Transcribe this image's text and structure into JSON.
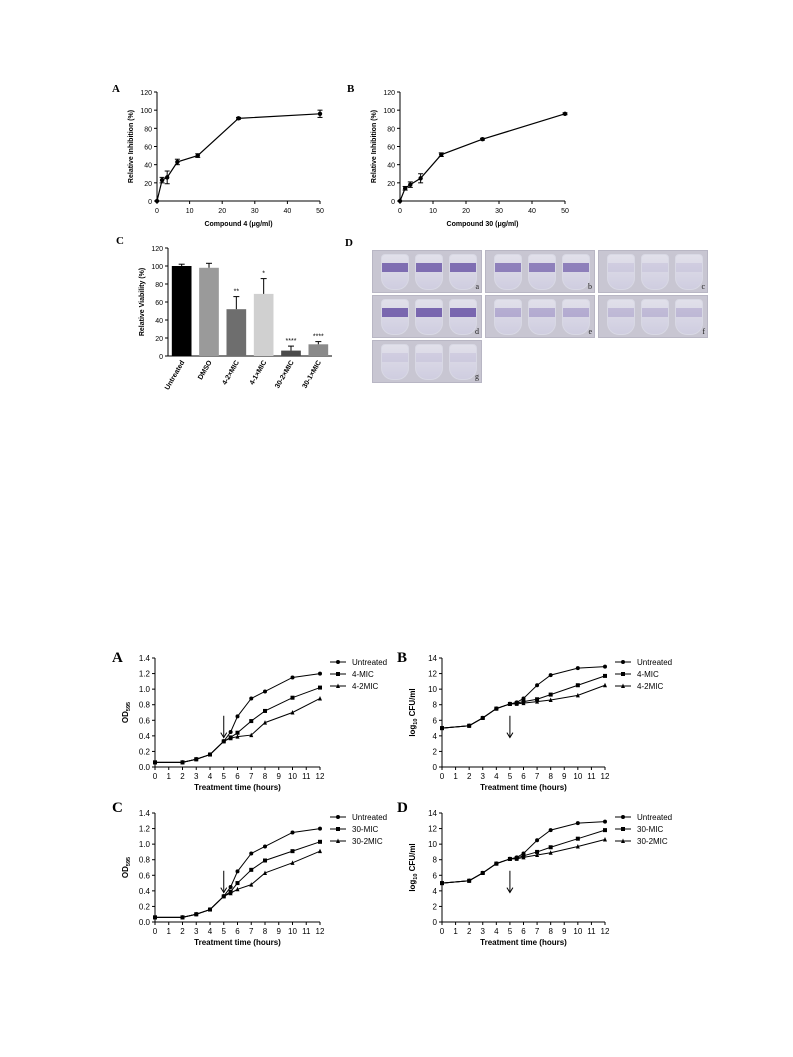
{
  "figure1": {
    "panels": [
      {
        "letter": "A",
        "ylabel": "Relative Inhibition (%)",
        "xlabel": "Compound 4 (μg/ml)"
      },
      {
        "letter": "B",
        "ylabel": "Relative Inhibition (%)",
        "xlabel": "Compound 30 (μg/ml)"
      },
      {
        "letter": "C",
        "ylabel": "Relative Viability (%)"
      },
      {
        "letter": "D",
        "tiles": [
          "a",
          "b",
          "c",
          "d",
          "e",
          "f",
          "g"
        ]
      }
    ]
  },
  "figure2": {
    "panels": [
      {
        "letter": "A",
        "ylabel_main": "OD",
        "ylabel_sub": "595",
        "xlabel": "Treatment time (hours)",
        "legend": [
          "Untreated",
          "4-MIC",
          "4-2MIC"
        ]
      },
      {
        "letter": "B",
        "ylabel_main": "log",
        "ylabel_sub": "10",
        "ylabel_rest": " CFU/ml",
        "xlabel": "Treatment time (hours)",
        "legend": [
          "Untreated",
          "4-MIC",
          "4-2MIC"
        ]
      },
      {
        "letter": "C",
        "ylabel_main": "OD",
        "ylabel_sub": "595",
        "xlabel": "Treatment time (hours)",
        "legend": [
          "Untreated",
          "30-MIC",
          "30-2MIC"
        ]
      },
      {
        "letter": "D",
        "ylabel_main": "log",
        "ylabel_sub": "10",
        "ylabel_rest": " CFU/ml",
        "xlabel": "Treatment time (hours)",
        "legend": [
          "Untreated",
          "30-MIC",
          "30-2MIC"
        ]
      }
    ]
  },
  "chart_data": [
    {
      "id": "1A",
      "type": "line",
      "x": [
        0,
        1.5625,
        3.125,
        6.25,
        12.5,
        25,
        50
      ],
      "y": [
        0,
        23,
        26,
        43,
        50,
        91,
        96
      ],
      "err": [
        0,
        3,
        7,
        3,
        2,
        1,
        4
      ],
      "xlim": [
        0,
        50
      ],
      "ylim": [
        0,
        120
      ],
      "xticks": [
        0,
        10,
        20,
        30,
        40,
        50
      ],
      "yticks": [
        0,
        20,
        40,
        60,
        80,
        100,
        120
      ]
    },
    {
      "id": "1B",
      "type": "line",
      "x": [
        0,
        1.5625,
        3.125,
        6.25,
        12.5,
        25,
        50
      ],
      "y": [
        0,
        14,
        18,
        25,
        51,
        68,
        96
      ],
      "err": [
        0,
        2,
        3,
        5,
        2,
        1,
        1
      ],
      "xlim": [
        0,
        50
      ],
      "ylim": [
        0,
        120
      ],
      "xticks": [
        0,
        10,
        20,
        30,
        40,
        50
      ],
      "yticks": [
        0,
        20,
        40,
        60,
        80,
        100,
        120
      ]
    },
    {
      "id": "1C",
      "type": "bar",
      "categories": [
        "Untreated",
        "DMSO",
        "4-2×MIC",
        "4-1×MIC",
        "30-2×MIC",
        "30-1×MIC"
      ],
      "values": [
        100,
        98,
        52,
        69,
        6,
        13
      ],
      "err": [
        2,
        5,
        14,
        17,
        5,
        3
      ],
      "significance": [
        "",
        "",
        "**",
        "*",
        "****",
        "****"
      ],
      "colors": [
        "#000000",
        "#9a9a9a",
        "#6e6e6e",
        "#d0d0d0",
        "#4a4a4a",
        "#8a8a8a"
      ],
      "ylim": [
        0,
        120
      ],
      "yticks": [
        0,
        20,
        40,
        60,
        80,
        100,
        120
      ]
    },
    {
      "id": "2A",
      "type": "line",
      "x": [
        0,
        2,
        3,
        4,
        5,
        5.5,
        6,
        7,
        8,
        10,
        12
      ],
      "series": [
        {
          "name": "Untreated",
          "marker": "circle",
          "values": [
            0.06,
            0.06,
            0.1,
            0.16,
            0.33,
            0.45,
            0.65,
            0.88,
            0.97,
            1.15,
            1.2
          ]
        },
        {
          "name": "4-MIC",
          "marker": "square",
          "values": [
            0.06,
            0.06,
            0.1,
            0.16,
            0.33,
            0.38,
            0.44,
            0.59,
            0.72,
            0.89,
            1.02
          ]
        },
        {
          "name": "4-2MIC",
          "marker": "triangle",
          "values": [
            0.06,
            0.06,
            0.1,
            0.16,
            0.33,
            0.37,
            0.39,
            0.41,
            0.57,
            0.7,
            0.88
          ]
        }
      ],
      "xlim": [
        0,
        12
      ],
      "ylim": [
        0,
        1.4
      ],
      "xticks": [
        0,
        1,
        2,
        3,
        4,
        5,
        6,
        7,
        8,
        9,
        10,
        11,
        12
      ],
      "yticks": [
        0.0,
        0.2,
        0.4,
        0.6,
        0.8,
        1.0,
        1.2,
        1.4
      ],
      "arrow_x": 5
    },
    {
      "id": "2B",
      "type": "line",
      "x": [
        0,
        2,
        3,
        4,
        5,
        5.5,
        6,
        7,
        8,
        10,
        12
      ],
      "series": [
        {
          "name": "Untreated",
          "marker": "circle",
          "values": [
            5,
            5.3,
            6.3,
            7.5,
            8.1,
            8.3,
            8.8,
            10.5,
            11.8,
            12.7,
            12.9
          ]
        },
        {
          "name": "4-MIC",
          "marker": "square",
          "values": [
            5,
            5.3,
            6.3,
            7.5,
            8.1,
            8.2,
            8.4,
            8.7,
            9.3,
            10.5,
            11.7
          ]
        },
        {
          "name": "4-2MIC",
          "marker": "triangle",
          "values": [
            5,
            5.3,
            6.3,
            7.5,
            8.1,
            8.1,
            8.2,
            8.4,
            8.6,
            9.2,
            10.5
          ]
        }
      ],
      "xlim": [
        0,
        12
      ],
      "ylim": [
        0,
        14
      ],
      "xticks": [
        0,
        1,
        2,
        3,
        4,
        5,
        6,
        7,
        8,
        9,
        10,
        11,
        12
      ],
      "yticks": [
        0,
        2,
        4,
        6,
        8,
        10,
        12,
        14
      ],
      "arrow_x": 5
    },
    {
      "id": "2C",
      "type": "line",
      "x": [
        0,
        2,
        3,
        4,
        5,
        5.5,
        6,
        7,
        8,
        10,
        12
      ],
      "series": [
        {
          "name": "Untreated",
          "marker": "circle",
          "values": [
            0.06,
            0.06,
            0.1,
            0.16,
            0.33,
            0.45,
            0.65,
            0.88,
            0.97,
            1.15,
            1.2
          ]
        },
        {
          "name": "30-MIC",
          "marker": "square",
          "values": [
            0.06,
            0.06,
            0.1,
            0.16,
            0.33,
            0.39,
            0.5,
            0.67,
            0.79,
            0.91,
            1.03
          ]
        },
        {
          "name": "30-2MIC",
          "marker": "triangle",
          "values": [
            0.06,
            0.06,
            0.1,
            0.16,
            0.33,
            0.37,
            0.42,
            0.48,
            0.63,
            0.76,
            0.91
          ]
        }
      ],
      "xlim": [
        0,
        12
      ],
      "ylim": [
        0,
        1.4
      ],
      "xticks": [
        0,
        1,
        2,
        3,
        4,
        5,
        6,
        7,
        8,
        9,
        10,
        11,
        12
      ],
      "yticks": [
        0.0,
        0.2,
        0.4,
        0.6,
        0.8,
        1.0,
        1.2,
        1.4
      ],
      "arrow_x": 5
    },
    {
      "id": "2D",
      "type": "line",
      "x": [
        0,
        2,
        3,
        4,
        5,
        5.5,
        6,
        7,
        8,
        10,
        12
      ],
      "series": [
        {
          "name": "Untreated",
          "marker": "circle",
          "values": [
            5,
            5.3,
            6.3,
            7.5,
            8.1,
            8.3,
            8.8,
            10.5,
            11.8,
            12.7,
            12.9
          ]
        },
        {
          "name": "30-MIC",
          "marker": "square",
          "values": [
            5,
            5.3,
            6.3,
            7.5,
            8.1,
            8.2,
            8.5,
            9,
            9.6,
            10.7,
            11.8
          ]
        },
        {
          "name": "30-2MIC",
          "marker": "triangle",
          "values": [
            5,
            5.3,
            6.3,
            7.5,
            8.1,
            8.1,
            8.3,
            8.6,
            8.9,
            9.7,
            10.6
          ]
        }
      ],
      "xlim": [
        0,
        12
      ],
      "ylim": [
        0,
        14
      ],
      "xticks": [
        0,
        1,
        2,
        3,
        4,
        5,
        6,
        7,
        8,
        9,
        10,
        11,
        12
      ],
      "yticks": [
        0,
        2,
        4,
        6,
        8,
        10,
        12,
        14
      ],
      "arrow_x": 5
    }
  ]
}
